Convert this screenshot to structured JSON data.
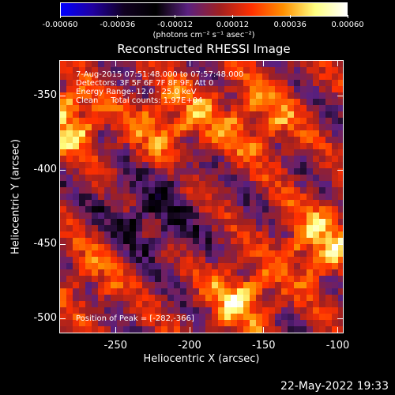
{
  "colorbar": {
    "ticks": [
      "-0.00060",
      "-0.00036",
      "-0.00012",
      "0.00012",
      "0.00036",
      "0.00060"
    ],
    "units": "(photons cm⁻² s⁻¹ asec⁻²)",
    "colormap_stops": [
      "#0000ff",
      "#2000a0",
      "#100020",
      "#000000",
      "#5a2080",
      "#a02020",
      "#ff3000",
      "#ff9000",
      "#ffff80",
      "#ffffff"
    ]
  },
  "title": "Reconstructed RHESSI Image",
  "info": {
    "time_range": "7-Aug-2015 07:51:48.000 to 07:57:48.000",
    "detectors": "Detectors: 3F 5F 6F 7F 8F 9F, Att 0",
    "energy": "Energy Range: 12.0 - 25.0 keV",
    "clean": "Clean     Total counts: 1.97E+04"
  },
  "peak_label": "Position of Peak = [-282,-366]",
  "footer_date": "22-May-2022 19:33",
  "chart_data": {
    "type": "heatmap",
    "title": "Reconstructed RHESSI Image",
    "xlabel": "Heliocentric X (arcsec)",
    "ylabel": "Heliocentric Y (arcsec)",
    "xlim": [
      -288,
      -96
    ],
    "ylim": [
      -510,
      -326
    ],
    "xticks": [
      "-250",
      "-200",
      "-150",
      "-100"
    ],
    "yticks": [
      "-350",
      "-400",
      "-450",
      "-500"
    ],
    "xtick_values": [
      -250,
      -200,
      -150,
      -100
    ],
    "ytick_values": [
      -350,
      -400,
      -450,
      -500
    ],
    "value_range": [
      -0.0006,
      0.0006
    ],
    "peak_position": [
      -282,
      -366
    ],
    "emission_regions": [
      {
        "name": "left-edge bright",
        "x": -282,
        "y": -366,
        "intensity": 0.0006,
        "sigma": 14
      },
      {
        "name": "upper diagonal band",
        "x": -210,
        "y": -372,
        "intensity": 0.0004,
        "sigma": 22
      },
      {
        "name": "upper right band",
        "x": -150,
        "y": -365,
        "intensity": 0.0003,
        "sigma": 20
      },
      {
        "name": "lower right bright",
        "x": -112,
        "y": -450,
        "intensity": 0.00048,
        "sigma": 18
      },
      {
        "name": "lower middle bright",
        "x": -165,
        "y": -487,
        "intensity": 0.00052,
        "sigma": 15
      },
      {
        "name": "lower left",
        "x": -265,
        "y": -470,
        "intensity": 0.00022,
        "sigma": 18
      },
      {
        "name": "central negative",
        "x": -228,
        "y": -430,
        "intensity": -0.0003,
        "sigma": 20
      },
      {
        "name": "upper negative",
        "x": -205,
        "y": -392,
        "intensity": -0.00025,
        "sigma": 12
      }
    ]
  }
}
